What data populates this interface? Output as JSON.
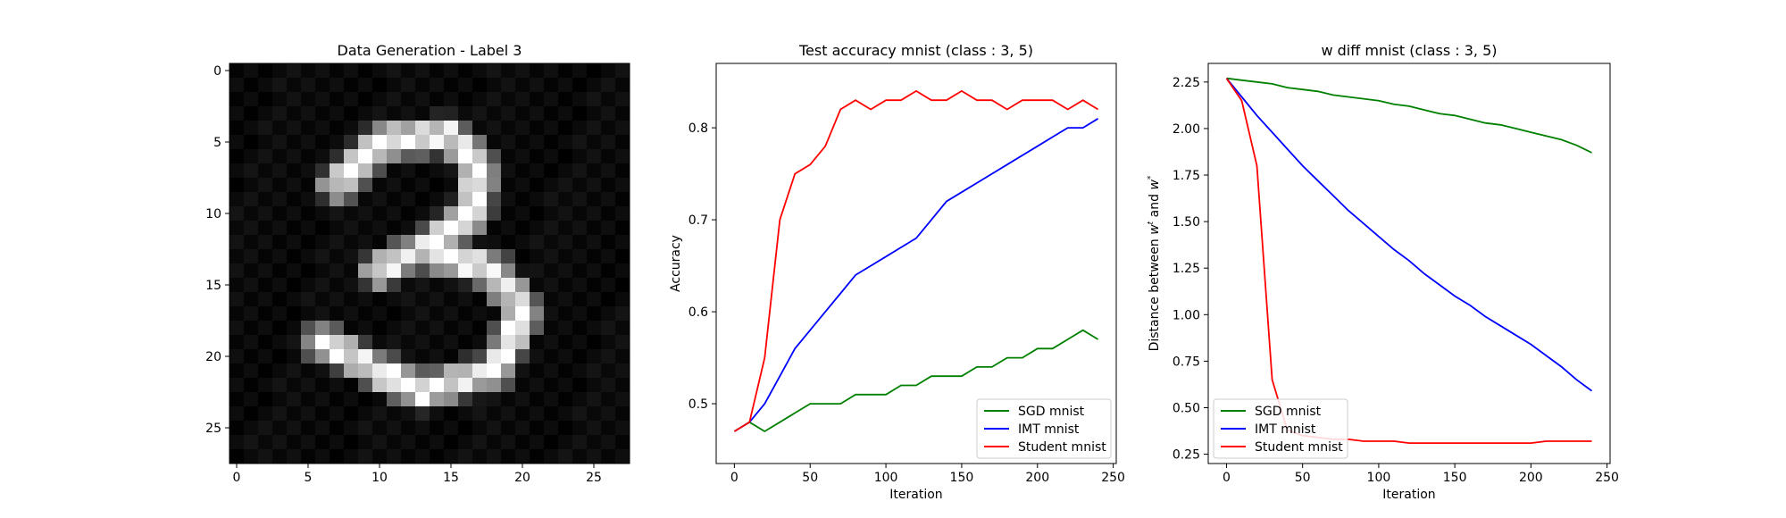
{
  "colors": {
    "sgd": "#008000",
    "imt": "#0000ff",
    "student": "#ff0000",
    "axis": "#000000",
    "legend_border": "#cccccc"
  },
  "chart_data": [
    {
      "type": "heatmap",
      "title": "Data Generation - Label 3",
      "colormap": "gray",
      "xlim": [
        -0.5,
        27.5
      ],
      "ylim": [
        27.5,
        -0.5
      ],
      "x_ticks": [
        0,
        5,
        10,
        15,
        20,
        25
      ],
      "y_ticks": [
        0,
        5,
        10,
        15,
        20,
        25
      ],
      "shape": [
        28,
        28
      ]
    },
    {
      "type": "line",
      "title": "Test accuracy mnist (class : 3, 5)",
      "xlabel": "Iteration",
      "ylabel": "Accuracy",
      "xlim": [
        -12,
        252
      ],
      "ylim": [
        0.435,
        0.87
      ],
      "x_ticks": [
        0,
        50,
        100,
        150,
        200,
        250
      ],
      "y_ticks": [
        0.5,
        0.6,
        0.7,
        0.8
      ],
      "legend_position": "lower right",
      "x": [
        0,
        10,
        20,
        30,
        40,
        50,
        60,
        70,
        80,
        90,
        100,
        110,
        120,
        130,
        140,
        150,
        160,
        170,
        180,
        190,
        200,
        210,
        220,
        230,
        240
      ],
      "series": [
        {
          "name": "SGD mnist",
          "color": "sgd",
          "values": [
            0.47,
            0.48,
            0.47,
            0.48,
            0.49,
            0.5,
            0.5,
            0.5,
            0.51,
            0.51,
            0.51,
            0.52,
            0.52,
            0.53,
            0.53,
            0.53,
            0.54,
            0.54,
            0.55,
            0.55,
            0.56,
            0.56,
            0.57,
            0.58,
            0.57
          ]
        },
        {
          "name": "IMT mnist",
          "color": "imt",
          "values": [
            0.47,
            0.48,
            0.5,
            0.53,
            0.56,
            0.58,
            0.6,
            0.62,
            0.64,
            0.65,
            0.66,
            0.67,
            0.68,
            0.7,
            0.72,
            0.73,
            0.74,
            0.75,
            0.76,
            0.77,
            0.78,
            0.79,
            0.8,
            0.8,
            0.81
          ]
        },
        {
          "name": "Student mnist",
          "color": "student",
          "values": [
            0.47,
            0.48,
            0.55,
            0.7,
            0.75,
            0.76,
            0.78,
            0.82,
            0.83,
            0.82,
            0.83,
            0.83,
            0.84,
            0.83,
            0.83,
            0.84,
            0.83,
            0.83,
            0.82,
            0.83,
            0.83,
            0.83,
            0.82,
            0.83,
            0.82
          ]
        }
      ]
    },
    {
      "type": "line",
      "title": "w diff mnist (class : 3, 5)",
      "xlabel": "Iteration",
      "ylabel": "Distance between w^t and w*",
      "ylabel_parts": [
        "Distance between ",
        "w",
        "t",
        " and ",
        "w",
        "*"
      ],
      "xlim": [
        -12,
        252
      ],
      "ylim": [
        0.2,
        2.35
      ],
      "x_ticks": [
        0,
        50,
        100,
        150,
        200,
        250
      ],
      "y_ticks": [
        "0.25",
        "0.50",
        "0.75",
        "1.00",
        "1.25",
        "1.50",
        "1.75",
        "2.00",
        "2.25"
      ],
      "legend_position": "lower left",
      "x": [
        0,
        10,
        20,
        30,
        40,
        50,
        60,
        70,
        80,
        90,
        100,
        110,
        120,
        130,
        140,
        150,
        160,
        170,
        180,
        190,
        200,
        210,
        220,
        230,
        240
      ],
      "series": [
        {
          "name": "SGD mnist",
          "color": "sgd",
          "values": [
            2.27,
            2.26,
            2.25,
            2.24,
            2.22,
            2.21,
            2.2,
            2.18,
            2.17,
            2.16,
            2.15,
            2.13,
            2.12,
            2.1,
            2.08,
            2.07,
            2.05,
            2.03,
            2.02,
            2.0,
            1.98,
            1.96,
            1.94,
            1.91,
            1.87
          ]
        },
        {
          "name": "IMT mnist",
          "color": "imt",
          "values": [
            2.27,
            2.17,
            2.07,
            1.98,
            1.89,
            1.8,
            1.72,
            1.64,
            1.56,
            1.49,
            1.42,
            1.35,
            1.29,
            1.22,
            1.16,
            1.1,
            1.05,
            0.99,
            0.94,
            0.89,
            0.84,
            0.78,
            0.72,
            0.65,
            0.59
          ]
        },
        {
          "name": "Student mnist",
          "color": "student",
          "values": [
            2.27,
            2.15,
            1.8,
            0.65,
            0.38,
            0.35,
            0.34,
            0.33,
            0.33,
            0.32,
            0.32,
            0.32,
            0.31,
            0.31,
            0.31,
            0.31,
            0.31,
            0.31,
            0.31,
            0.31,
            0.31,
            0.32,
            0.32,
            0.32,
            0.32
          ]
        }
      ]
    }
  ]
}
